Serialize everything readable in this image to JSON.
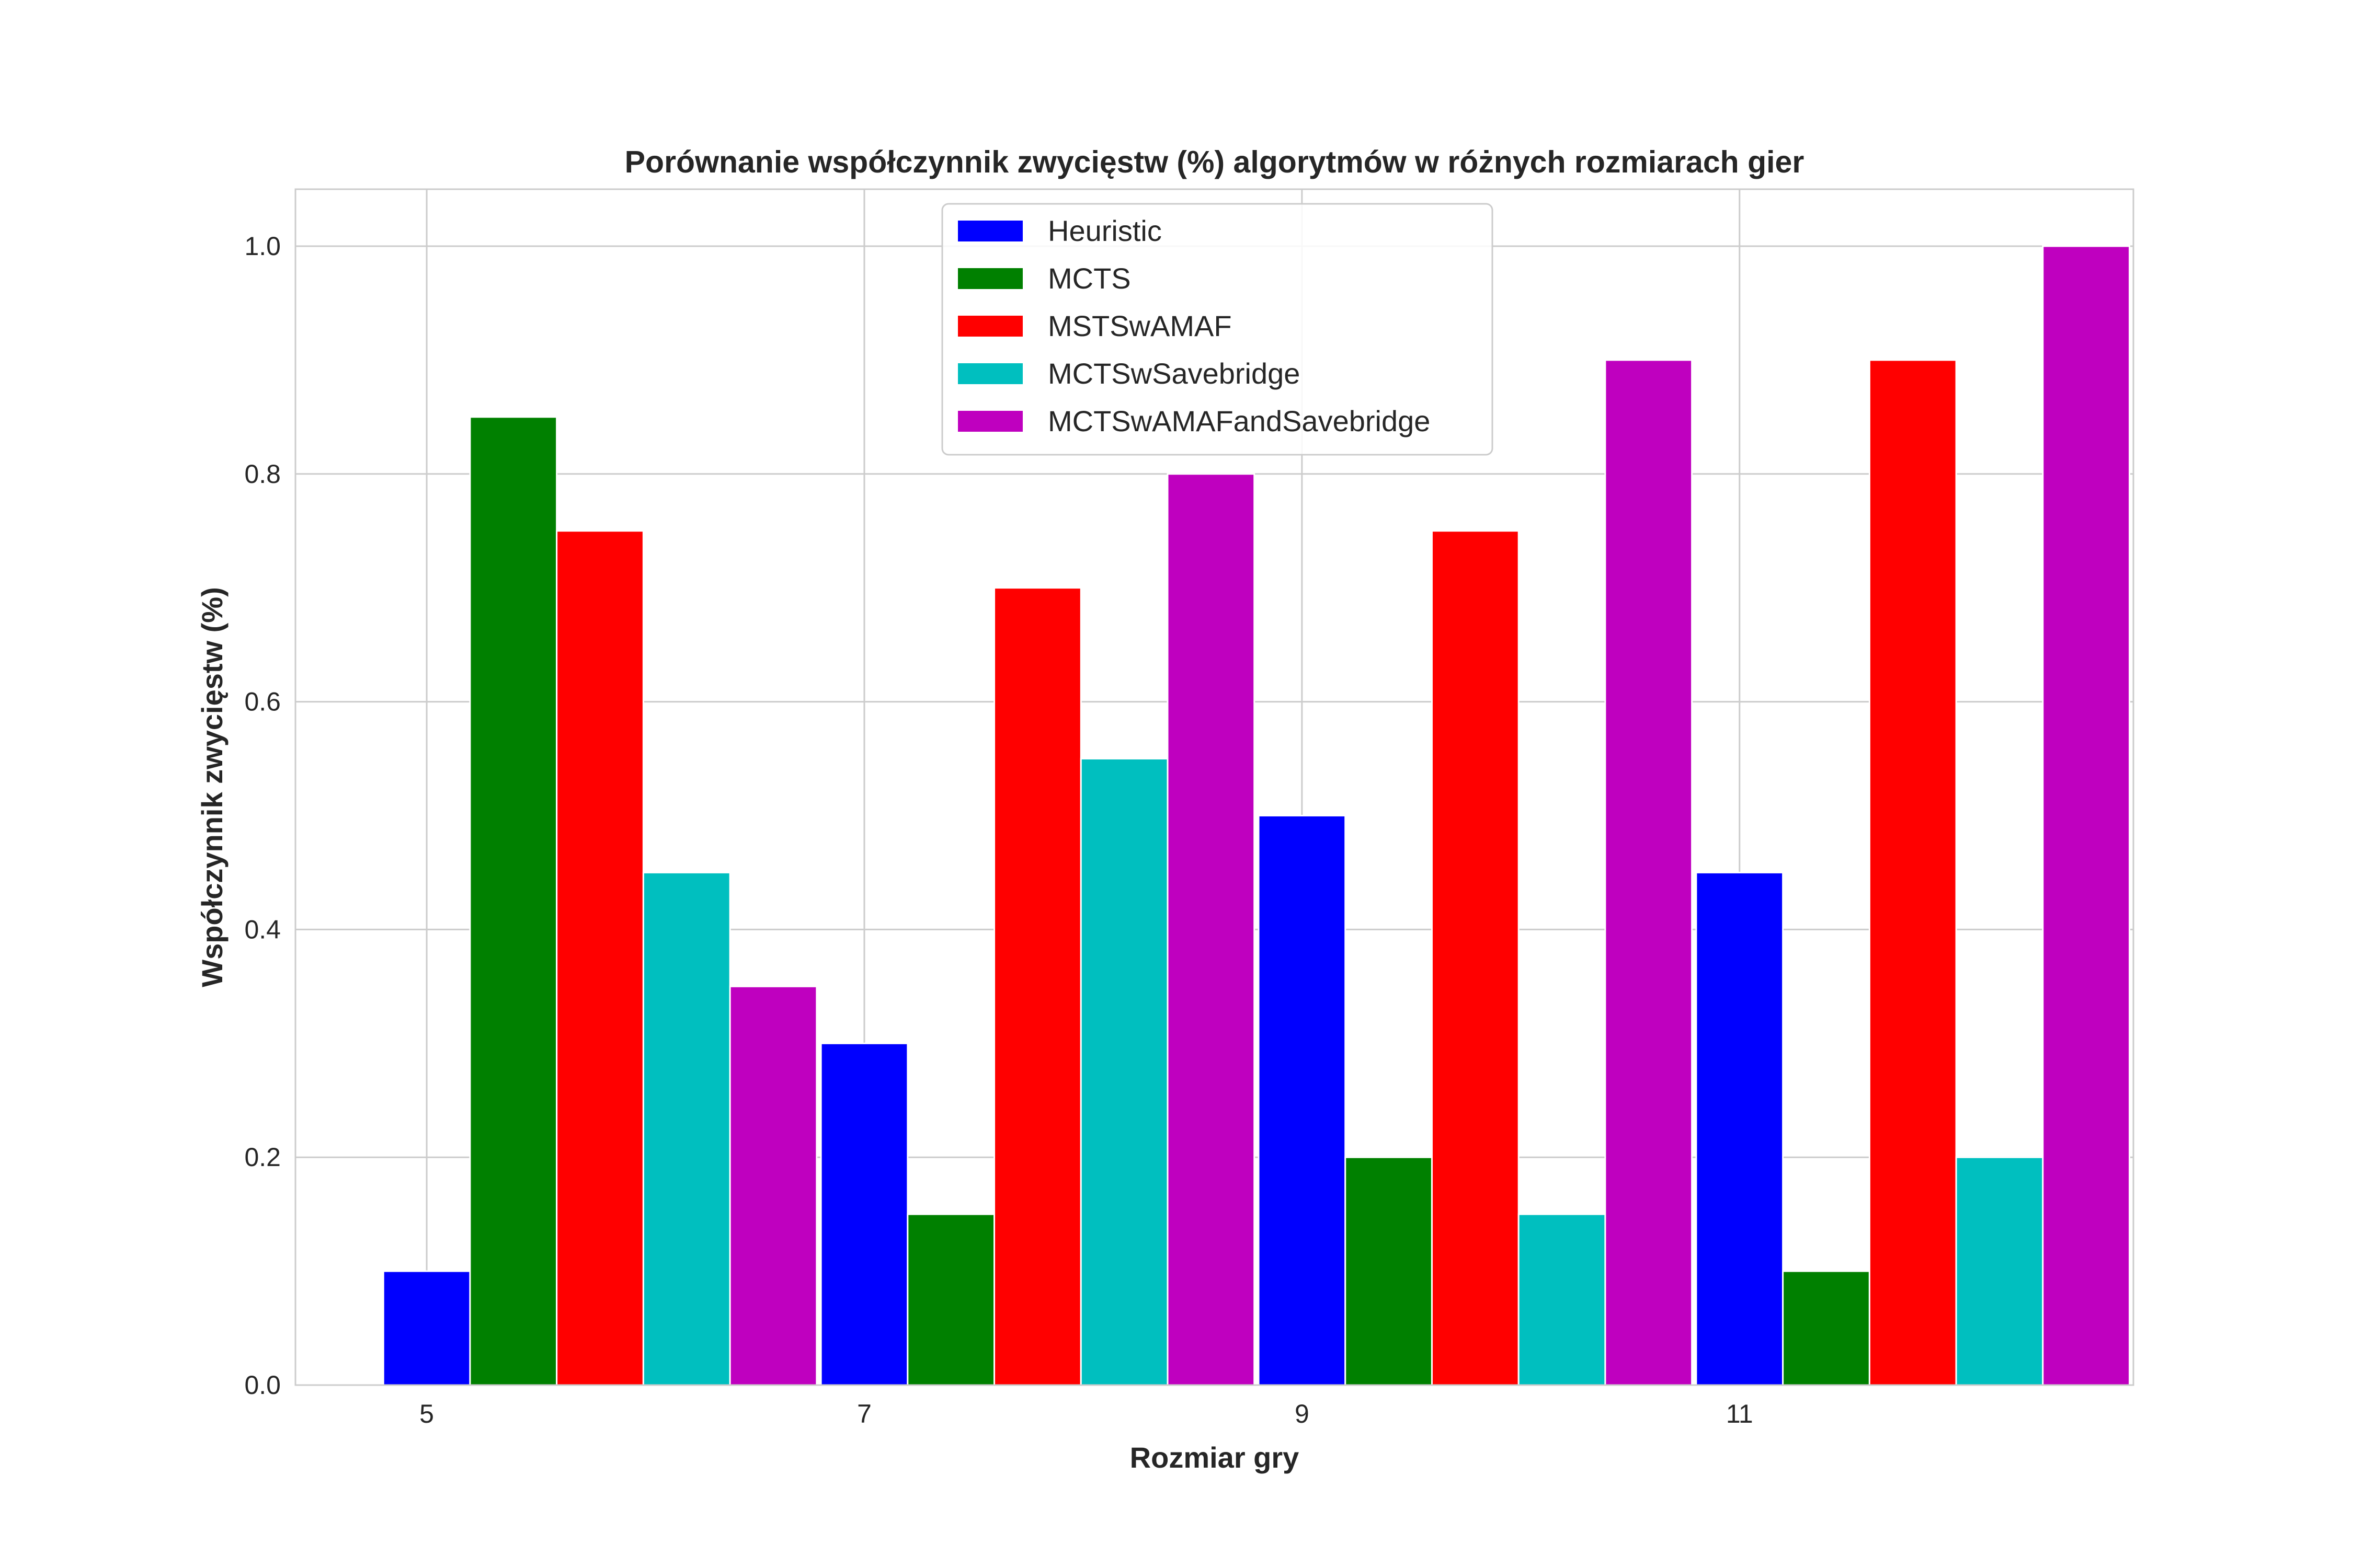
{
  "chart_data": {
    "type": "bar",
    "title": "Porównanie współczynnik zwycięstw (%) algorytmów w różnych rozmiarach gier",
    "xlabel": "Rozmiar gry",
    "ylabel": "Współczynnik zwycięstw (%)",
    "categories": [
      "5",
      "7",
      "9",
      "11"
    ],
    "ylim": [
      0,
      1.05
    ],
    "yticks": [
      "0.0",
      "0.2",
      "0.4",
      "0.6",
      "0.8",
      "1.0"
    ],
    "grid": true,
    "legend_position": "upper-center",
    "series": [
      {
        "name": "Heuristic",
        "color": "#0000ff",
        "values": [
          0.1,
          0.3,
          0.5,
          0.45
        ]
      },
      {
        "name": "MCTS",
        "color": "#008000",
        "values": [
          0.85,
          0.15,
          0.2,
          0.1
        ]
      },
      {
        "name": "MSTSwAMAF",
        "color": "#ff0000",
        "values": [
          0.75,
          0.7,
          0.75,
          0.9
        ]
      },
      {
        "name": "MCTSwSavebridge",
        "color": "#00bfbf",
        "values": [
          0.45,
          0.55,
          0.15,
          0.2
        ]
      },
      {
        "name": "MCTSwAMAFandSavebridge",
        "color": "#bf00bf",
        "values": [
          0.35,
          0.8,
          0.9,
          1.0
        ]
      }
    ]
  }
}
